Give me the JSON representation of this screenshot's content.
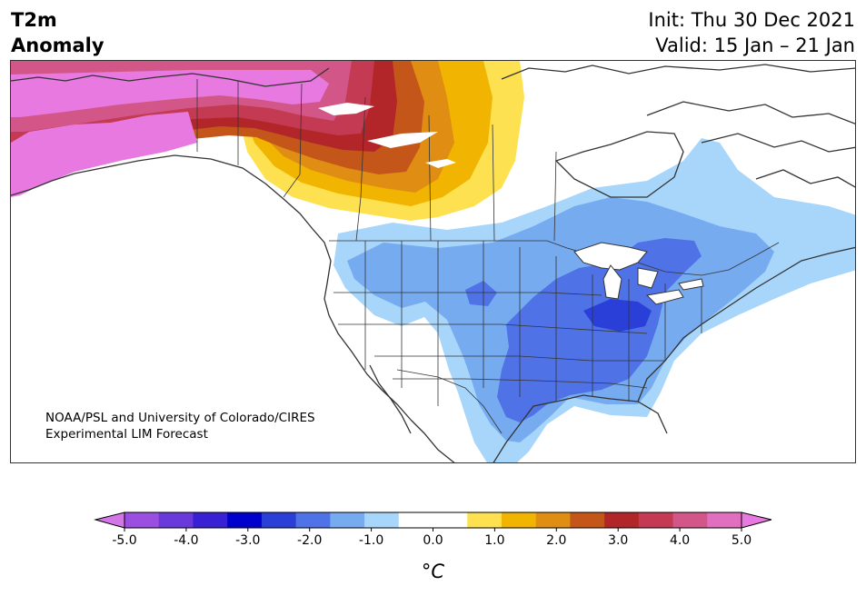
{
  "header": {
    "title_line1": "T2m",
    "title_line2": "Anomaly",
    "init": "Init: Thu 30 Dec 2021",
    "valid": "Valid: 15 Jan – 21 Jan"
  },
  "credit": {
    "line1": "NOAA/PSL and University of Colorado/CIRES",
    "line2": "Experimental LIM Forecast"
  },
  "colorbar": {
    "unit_label": "°C",
    "ticks": [
      "-5.0",
      "-4.0",
      "-3.0",
      "-2.0",
      "-1.0",
      "0.0",
      "1.0",
      "2.0",
      "3.0",
      "4.0",
      "5.0"
    ],
    "colors": [
      "#9a4fe0",
      "#6a39dc",
      "#3a20d4",
      "#0000cc",
      "#2a3fd8",
      "#4f73e6",
      "#76abf0",
      "#a8d6fb",
      "#ffffff",
      "#ffffff",
      "#fde150",
      "#f1b400",
      "#e08d14",
      "#c4561a",
      "#b2262a",
      "#c43a52",
      "#d25788",
      "#e06fc0"
    ],
    "under_color": "#d377e8",
    "over_color": "#e779e0"
  }
}
